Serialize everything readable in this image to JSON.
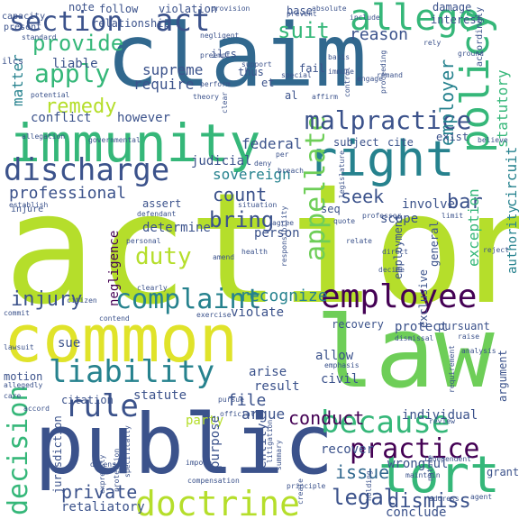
{
  "palette": {
    "dark_purple": "#440154",
    "indigo": "#3b528b",
    "blue": "#31688e",
    "teal": "#26828e",
    "green": "#35b779",
    "light_green": "#6ece58",
    "lime": "#b5de2b",
    "yellow": "#e0e32a",
    "background": "#ffffff"
  },
  "words": [
    {
      "text": "action",
      "color": "#b5de2b"
    },
    {
      "text": "claim",
      "color": "#31688e"
    },
    {
      "text": "common",
      "color": "#e0e32a"
    },
    {
      "text": "law",
      "color": "#6ece58"
    },
    {
      "text": "public",
      "color": "#3b528b"
    },
    {
      "text": "immunity",
      "color": "#35b779"
    },
    {
      "text": "right",
      "color": "#26828e"
    },
    {
      "text": "discharge",
      "color": "#3b528b"
    },
    {
      "text": "employee",
      "color": "#440154"
    },
    {
      "text": "policy",
      "color": "#35b779"
    },
    {
      "text": "section",
      "color": "#3b528b"
    },
    {
      "text": "act",
      "color": "#3b528b"
    },
    {
      "text": "allege",
      "color": "#35b779"
    },
    {
      "text": "tort",
      "color": "#35b779"
    },
    {
      "text": "doctrine",
      "color": "#b5de2b"
    },
    {
      "text": "liability",
      "color": "#26828e"
    },
    {
      "text": "because",
      "color": "#35b779"
    },
    {
      "text": "practice",
      "color": "#440154"
    },
    {
      "text": "decision",
      "color": "#35b779"
    },
    {
      "text": "complaint",
      "color": "#26828e"
    },
    {
      "text": "appellate",
      "color": "#6ece58"
    },
    {
      "text": "malpractice",
      "color": "#3b528b"
    },
    {
      "text": "rule",
      "color": "#3b528b"
    },
    {
      "text": "provide",
      "color": "#35b779"
    },
    {
      "text": "apply",
      "color": "#35b779"
    },
    {
      "text": "remedy",
      "color": "#b5de2b"
    },
    {
      "text": "injury",
      "color": "#3b528b"
    },
    {
      "text": "count",
      "color": "#3b528b"
    },
    {
      "text": "professional",
      "color": "#3b528b"
    },
    {
      "text": "suit",
      "color": "#35b779"
    },
    {
      "text": "bring",
      "color": "#3b528b"
    },
    {
      "text": "duty",
      "color": "#b5de2b"
    },
    {
      "text": "legal",
      "color": "#3b528b"
    },
    {
      "text": "dismiss",
      "color": "#3b528b"
    },
    {
      "text": "private",
      "color": "#3b528b"
    },
    {
      "text": "conduct",
      "color": "#440154"
    },
    {
      "text": "issue",
      "color": "#31688e"
    },
    {
      "text": "seek",
      "color": "#3b528b"
    },
    {
      "text": "bar",
      "color": "#3b528b"
    },
    {
      "text": "recognize",
      "color": "#26828e"
    },
    {
      "text": "employer",
      "color": "#26828e"
    },
    {
      "text": "reason",
      "color": "#3b528b"
    },
    {
      "text": "circuit",
      "color": "#26828e"
    },
    {
      "text": "statutory",
      "color": "#35b779"
    },
    {
      "text": "exception",
      "color": "#35b779"
    },
    {
      "text": "authority",
      "color": "#26828e"
    },
    {
      "text": "sovereign",
      "color": "#26828e"
    },
    {
      "text": "judicial",
      "color": "#3b528b"
    },
    {
      "text": "federal",
      "color": "#3b528b"
    },
    {
      "text": "supreme",
      "color": "#3b528b"
    },
    {
      "text": "require",
      "color": "#3b528b"
    },
    {
      "text": "however",
      "color": "#3b528b"
    },
    {
      "text": "conflict",
      "color": "#3b528b"
    },
    {
      "text": "liable",
      "color": "#3b528b"
    },
    {
      "text": "matter",
      "color": "#26828e"
    },
    {
      "text": "determine",
      "color": "#3b528b"
    },
    {
      "text": "person",
      "color": "#3b528b"
    },
    {
      "text": "negligence",
      "color": "#440154"
    },
    {
      "text": "scope",
      "color": "#3b528b"
    },
    {
      "text": "involve",
      "color": "#3b528b"
    },
    {
      "text": "assert",
      "color": "#3b528b"
    },
    {
      "text": "statute",
      "color": "#3b528b"
    },
    {
      "text": "result",
      "color": "#3b528b"
    },
    {
      "text": "file",
      "color": "#3b528b"
    },
    {
      "text": "argue",
      "color": "#3b528b"
    },
    {
      "text": "arise",
      "color": "#3b528b"
    },
    {
      "text": "civil",
      "color": "#3b528b"
    },
    {
      "text": "allow",
      "color": "#3b528b"
    },
    {
      "text": "sue",
      "color": "#3b528b"
    },
    {
      "text": "protect",
      "color": "#3b528b"
    },
    {
      "text": "pursuant",
      "color": "#3b528b"
    },
    {
      "text": "recovery",
      "color": "#3b528b"
    },
    {
      "text": "violate",
      "color": "#3b528b"
    },
    {
      "text": "individual",
      "color": "#3b528b"
    },
    {
      "text": "recover",
      "color": "#3b528b"
    },
    {
      "text": "wrongful",
      "color": "#3b528b"
    },
    {
      "text": "conclude",
      "color": "#3b528b"
    },
    {
      "text": "retaliatory",
      "color": "#3b528b"
    },
    {
      "text": "entity",
      "color": "#3b528b"
    },
    {
      "text": "party",
      "color": "#b5de2b"
    },
    {
      "text": "purpose",
      "color": "#3b528b"
    },
    {
      "text": "motion",
      "color": "#3b528b"
    },
    {
      "text": "citation",
      "color": "#3b528b"
    },
    {
      "text": "jurisdiction",
      "color": "#3b528b"
    },
    {
      "text": "grant",
      "color": "#3b528b"
    },
    {
      "text": "argument",
      "color": "#3b528b"
    },
    {
      "text": "employment",
      "color": "#3b528b"
    },
    {
      "text": "exclusive",
      "color": "#3b528b"
    },
    {
      "text": "general",
      "color": "#3b528b"
    },
    {
      "text": "note",
      "color": "#3b528b"
    },
    {
      "text": "follow",
      "color": "#3b528b"
    },
    {
      "text": "violation",
      "color": "#3b528b"
    },
    {
      "text": "relationship",
      "color": "#3b528b"
    },
    {
      "text": "base",
      "color": "#3b528b"
    },
    {
      "text": "damage",
      "color": "#3b528b"
    },
    {
      "text": "interest",
      "color": "#3b528b"
    },
    {
      "text": "fail",
      "color": "#3b528b"
    },
    {
      "text": "thus",
      "color": "#3b528b"
    },
    {
      "text": "ilcs",
      "color": "#3b528b"
    },
    {
      "text": "et",
      "color": "#3b528b"
    },
    {
      "text": "al",
      "color": "#3b528b"
    },
    {
      "text": "subject",
      "color": "#3b528b"
    },
    {
      "text": "cite",
      "color": "#3b528b"
    },
    {
      "text": "exist",
      "color": "#3b528b"
    },
    {
      "text": "seq",
      "color": "#3b528b"
    },
    {
      "text": "capacity",
      "color": "#3b528b"
    },
    {
      "text": "present",
      "color": "#3b528b"
    },
    {
      "text": "accordingly",
      "color": "#3b528b"
    },
    {
      "text": "injure",
      "color": "#3b528b"
    },
    {
      "text": "establish",
      "color": "#3b528b"
    },
    {
      "text": "negligent",
      "color": "#3b528b"
    },
    {
      "text": "provision",
      "color": "#3b528b"
    },
    {
      "text": "absolute",
      "color": "#3b528b"
    },
    {
      "text": "theory",
      "color": "#3b528b"
    },
    {
      "text": "basis",
      "color": "#3b528b"
    },
    {
      "text": "remand",
      "color": "#3b528b"
    },
    {
      "text": "nature",
      "color": "#3b528b"
    },
    {
      "text": "holding",
      "color": "#3b528b"
    },
    {
      "text": "independent",
      "color": "#3b528b"
    },
    {
      "text": "create",
      "color": "#3b528b"
    },
    {
      "text": "impose",
      "color": "#3b528b"
    },
    {
      "text": "compensation",
      "color": "#3b528b"
    },
    {
      "text": "address",
      "color": "#3b528b"
    },
    {
      "text": "agent",
      "color": "#3b528b"
    },
    {
      "text": "reject",
      "color": "#3b528b"
    },
    {
      "text": "defense",
      "color": "#3b528b"
    },
    {
      "text": "citizen",
      "color": "#3b528b"
    },
    {
      "text": "contend",
      "color": "#3b528b"
    },
    {
      "text": "clearly",
      "color": "#3b528b"
    },
    {
      "text": "exercise",
      "color": "#3b528b"
    },
    {
      "text": "amend",
      "color": "#3b528b"
    },
    {
      "text": "health",
      "color": "#3b528b"
    },
    {
      "text": "decide",
      "color": "#3b528b"
    },
    {
      "text": "direct",
      "color": "#3b528b"
    },
    {
      "text": "relate",
      "color": "#3b528b"
    },
    {
      "text": "analysis",
      "color": "#3b528b"
    },
    {
      "text": "dismissal",
      "color": "#3b528b"
    },
    {
      "text": "requirement",
      "color": "#3b528b"
    },
    {
      "text": "emphasis",
      "color": "#3b528b"
    },
    {
      "text": "review",
      "color": "#3b528b"
    },
    {
      "text": "maintain",
      "color": "#3b528b"
    },
    {
      "text": "principle",
      "color": "#3b528b"
    },
    {
      "text": "summary",
      "color": "#3b528b"
    },
    {
      "text": "litigation",
      "color": "#3b528b"
    },
    {
      "text": "expressly",
      "color": "#3b528b"
    },
    {
      "text": "protection",
      "color": "#3b528b"
    },
    {
      "text": "specifically",
      "color": "#3b528b"
    },
    {
      "text": "deny",
      "color": "#3b528b"
    },
    {
      "text": "breach",
      "color": "#3b528b"
    },
    {
      "text": "clear",
      "color": "#3b528b"
    },
    {
      "text": "support",
      "color": "#3b528b"
    },
    {
      "text": "special",
      "color": "#3b528b"
    },
    {
      "text": "immune",
      "color": "#3b528b"
    },
    {
      "text": "engage",
      "color": "#3b528b"
    },
    {
      "text": "control",
      "color": "#3b528b"
    },
    {
      "text": "affirm",
      "color": "#3b528b"
    },
    {
      "text": "proceeding",
      "color": "#3b528b"
    },
    {
      "text": "allegation",
      "color": "#3b528b"
    },
    {
      "text": "believe",
      "color": "#3b528b"
    },
    {
      "text": "limit",
      "color": "#3b528b"
    },
    {
      "text": "quote",
      "color": "#3b528b"
    },
    {
      "text": "professor",
      "color": "#3b528b"
    },
    {
      "text": "legislature",
      "color": "#3b528b"
    },
    {
      "text": "governmental",
      "color": "#3b528b"
    },
    {
      "text": "defendant",
      "color": "#3b528b"
    },
    {
      "text": "situation",
      "color": "#3b528b"
    },
    {
      "text": "agree",
      "color": "#3b528b"
    },
    {
      "text": "responsibility",
      "color": "#3b528b"
    },
    {
      "text": "standard",
      "color": "#3b528b"
    },
    {
      "text": "potential",
      "color": "#3b528b"
    },
    {
      "text": "preempt",
      "color": "#3b528b"
    },
    {
      "text": "perform",
      "color": "#3b528b"
    },
    {
      "text": "include",
      "color": "#3b528b"
    },
    {
      "text": "rely",
      "color": "#3b528b"
    },
    {
      "text": "ground",
      "color": "#3b528b"
    },
    {
      "text": "prevent",
      "color": "#3b528b"
    },
    {
      "text": "care",
      "color": "#3b528b"
    },
    {
      "text": "lawsuit",
      "color": "#3b528b"
    },
    {
      "text": "allegedly",
      "color": "#3b528b"
    },
    {
      "text": "accord",
      "color": "#3b528b"
    },
    {
      "text": "commit",
      "color": "#3b528b"
    },
    {
      "text": "personal",
      "color": "#3b528b"
    },
    {
      "text": "pursue",
      "color": "#3b528b"
    },
    {
      "text": "raise",
      "color": "#3b528b"
    },
    {
      "text": "official",
      "color": "#3b528b"
    },
    {
      "text": "per",
      "color": "#3b528b"
    },
    {
      "text": "ilcs",
      "color": "#3b528b"
    }
  ]
}
